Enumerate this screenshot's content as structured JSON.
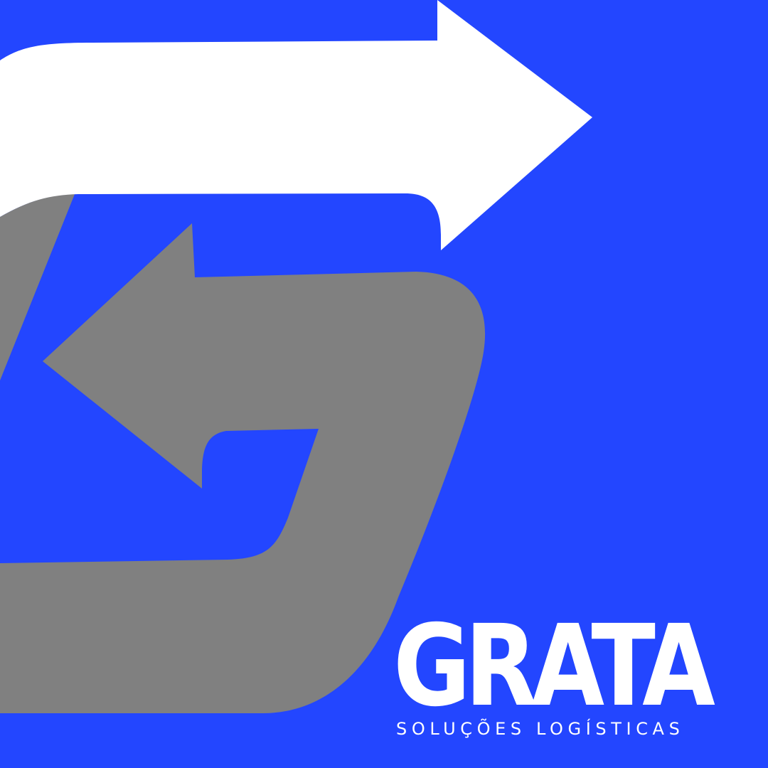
{
  "brand": {
    "name": "GRATA",
    "tagline": "SOLUÇÕES LOGÍSTICAS"
  },
  "colors": {
    "background": "#2346ff",
    "arrow_primary": "#ffffff",
    "arrow_secondary": "#808080",
    "text": "#ffffff"
  },
  "icons": {
    "emblem": "g-shaped-double-arrow-icon"
  }
}
